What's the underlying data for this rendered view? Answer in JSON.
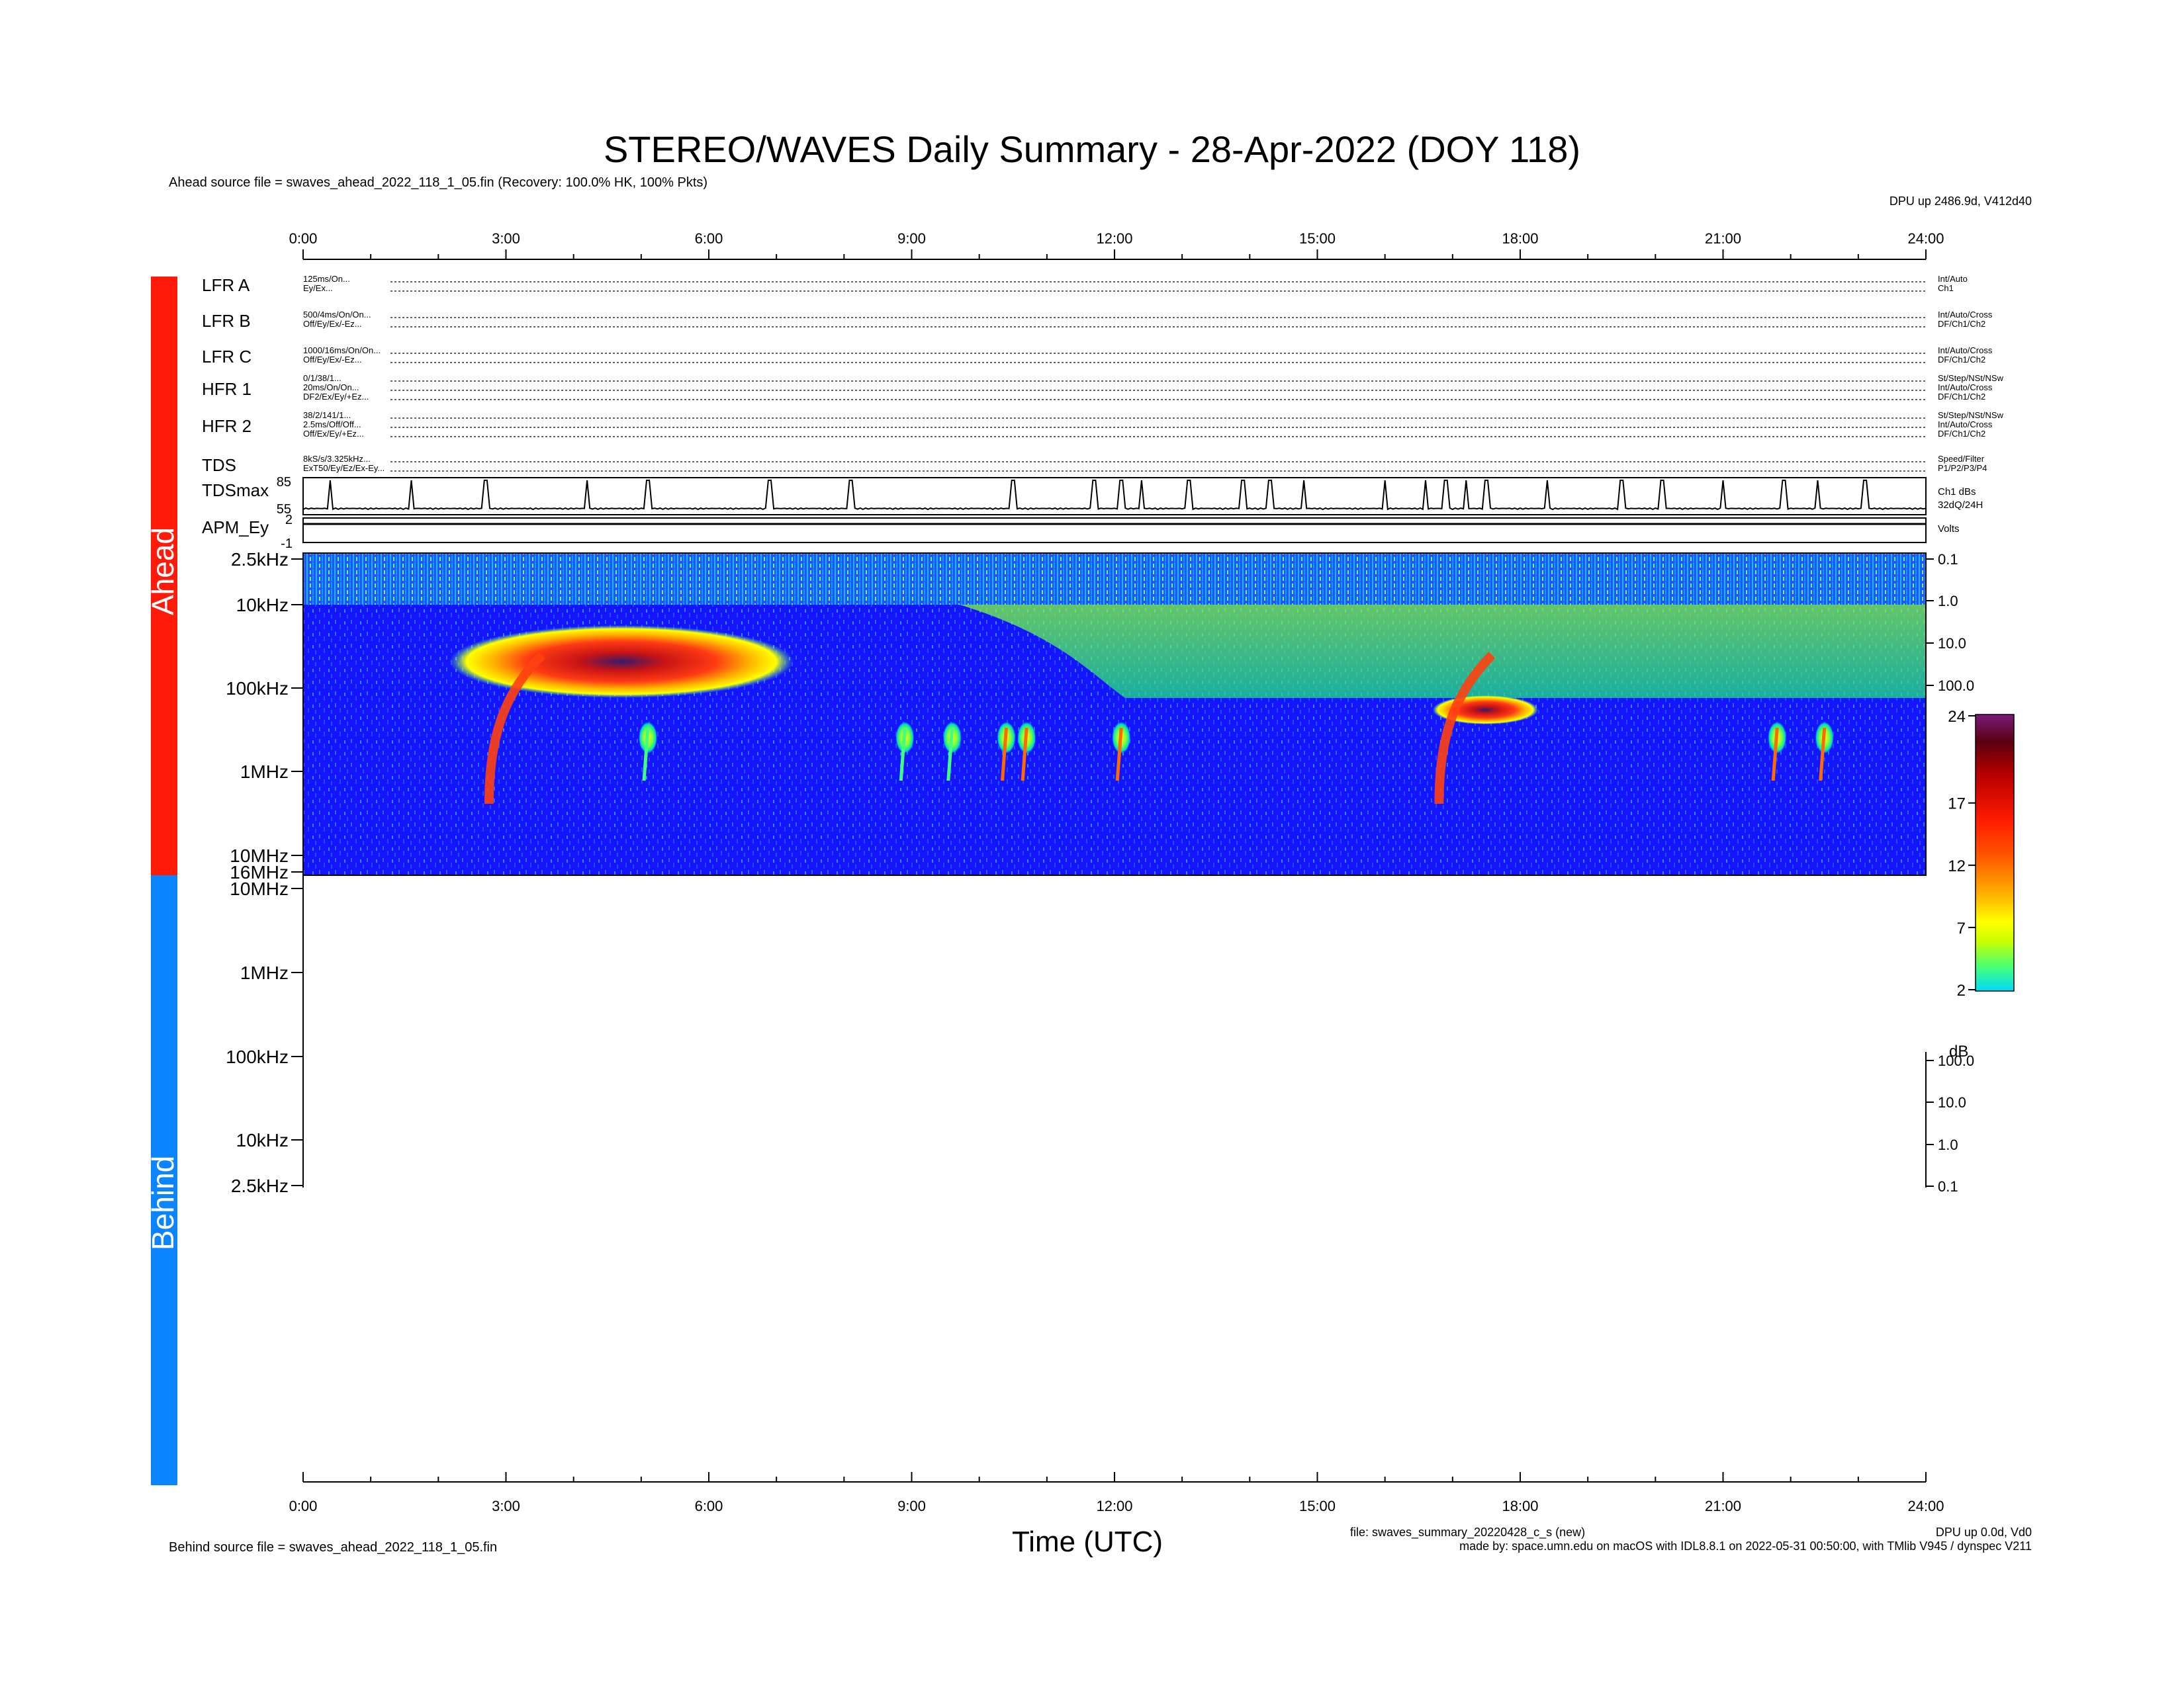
{
  "header": {
    "title": "STEREO/WAVES Daily Summary - 28-Apr-2022 (DOY 118)",
    "ahead_source": "Ahead source file = swaves_ahead_2022_118_1_05.fin (Recovery: 100.0% HK, 100% Pkts)",
    "dpu_ahead": "DPU up 2486.9d, V412d40"
  },
  "footer": {
    "behind_source": "Behind source file = swaves_ahead_2022_118_1_05.fin",
    "xlabel": "Time (UTC)",
    "file_info": "file: swaves_summary_20220428_c_s (new)",
    "made_by": "made by: space.umn.edu on macOS with IDL8.8.1 on 2022-05-31 00:50:00, with TMlib V945 / dynspec V211",
    "dpu_behind": "DPU up 0.0d, Vd0"
  },
  "spacecraft_bars": {
    "ahead": {
      "label": "Ahead",
      "color": "#ff1a0a"
    },
    "behind": {
      "label": "Behind",
      "color": "#0a84ff"
    }
  },
  "time_axis": {
    "labels": [
      "0:00",
      "3:00",
      "6:00",
      "9:00",
      "12:00",
      "15:00",
      "18:00",
      "21:00",
      "24:00"
    ]
  },
  "status_rows": [
    {
      "name": "LFR A",
      "lines": [
        "125ms/On...",
        "Ey/Ex..."
      ],
      "right": [
        "Int/Auto",
        "Ch1"
      ]
    },
    {
      "name": "LFR B",
      "lines": [
        "500/4ms/On/On...",
        "Off/Ey/Ex/-Ez..."
      ],
      "right": [
        "Int/Auto/Cross",
        "DF/Ch1/Ch2"
      ]
    },
    {
      "name": "LFR C",
      "lines": [
        "1000/16ms/On/On...",
        "Off/Ey/Ex/-Ez..."
      ],
      "right": [
        "Int/Auto/Cross",
        "DF/Ch1/Ch2"
      ]
    },
    {
      "name": "HFR 1",
      "lines": [
        "0/1/38/1...",
        "20ms/On/On...",
        "DF2/Ex/Ey/+Ez..."
      ],
      "right": [
        "St/Step/NSt/NSw",
        "Int/Auto/Cross",
        "DF/Ch1/Ch2"
      ]
    },
    {
      "name": "HFR 2",
      "lines": [
        "38/2/141/1...",
        "2.5ms/Off/Off...",
        "Off/Ex/Ey/+Ez..."
      ],
      "right": [
        "St/Step/NSt/NSw",
        "Int/Auto/Cross",
        "DF/Ch1/Ch2"
      ]
    },
    {
      "name": "TDS",
      "lines": [
        "8kS/s/3.325kHz...",
        "ExT50/Ey/Ez/Ex-Ey..."
      ],
      "right": [
        "Speed/Filter",
        "P1/P2/P3/P4"
      ]
    }
  ],
  "tdsmax": {
    "label": "TDSmax",
    "ticks": [
      "85",
      "55"
    ],
    "right": [
      "Ch1 dBs",
      "32dQ/24H"
    ]
  },
  "apm": {
    "label": "APM_Ey",
    "ticks": [
      "2",
      "-1"
    ],
    "right": [
      "Volts"
    ]
  },
  "freq_axis_ahead": [
    "2.5kHz",
    "10kHz",
    "100kHz",
    "1MHz",
    "10MHz",
    "16MHz"
  ],
  "freq_axis_behind": [
    "10MHz",
    "1MHz",
    "100kHz",
    "10kHz",
    "2.5kHz"
  ],
  "right_axis_ahead": [
    "0.1",
    "1.0",
    "10.0",
    "100.0"
  ],
  "right_axis_behind": [
    "100.0",
    "10.0",
    "1.0",
    "0.1"
  ],
  "colorbar": {
    "ticks": [
      "24",
      "17",
      "12",
      "7",
      "2"
    ],
    "unit": "dB"
  },
  "chart_data": {
    "type": "heatmap",
    "x_unit": "hours UTC",
    "xlim": [
      0,
      24
    ],
    "tdsmax_spikes_hours": [
      0.4,
      1.6,
      2.7,
      4.2,
      5.1,
      6.9,
      8.1,
      10.5,
      11.7,
      12.1,
      12.4,
      13.1,
      13.9,
      14.3,
      14.8,
      16.0,
      16.6,
      16.9,
      17.2,
      17.5,
      18.4,
      19.5,
      20.1,
      21.0,
      21.9,
      22.4,
      23.1
    ],
    "radio_bursts": [
      {
        "start_h": 2.75,
        "peak_dB": 20
      },
      {
        "start_h": 5.1,
        "peak_dB": 9
      },
      {
        "start_h": 8.9,
        "peak_dB": 8
      },
      {
        "start_h": 9.6,
        "peak_dB": 9
      },
      {
        "start_h": 10.4,
        "peak_dB": 12
      },
      {
        "start_h": 10.7,
        "peak_dB": 12
      },
      {
        "start_h": 12.1,
        "peak_dB": 13
      },
      {
        "start_h": 16.8,
        "peak_dB": 20
      },
      {
        "start_h": 21.8,
        "peak_dB": 13
      },
      {
        "start_h": 22.5,
        "peak_dB": 13
      }
    ]
  }
}
